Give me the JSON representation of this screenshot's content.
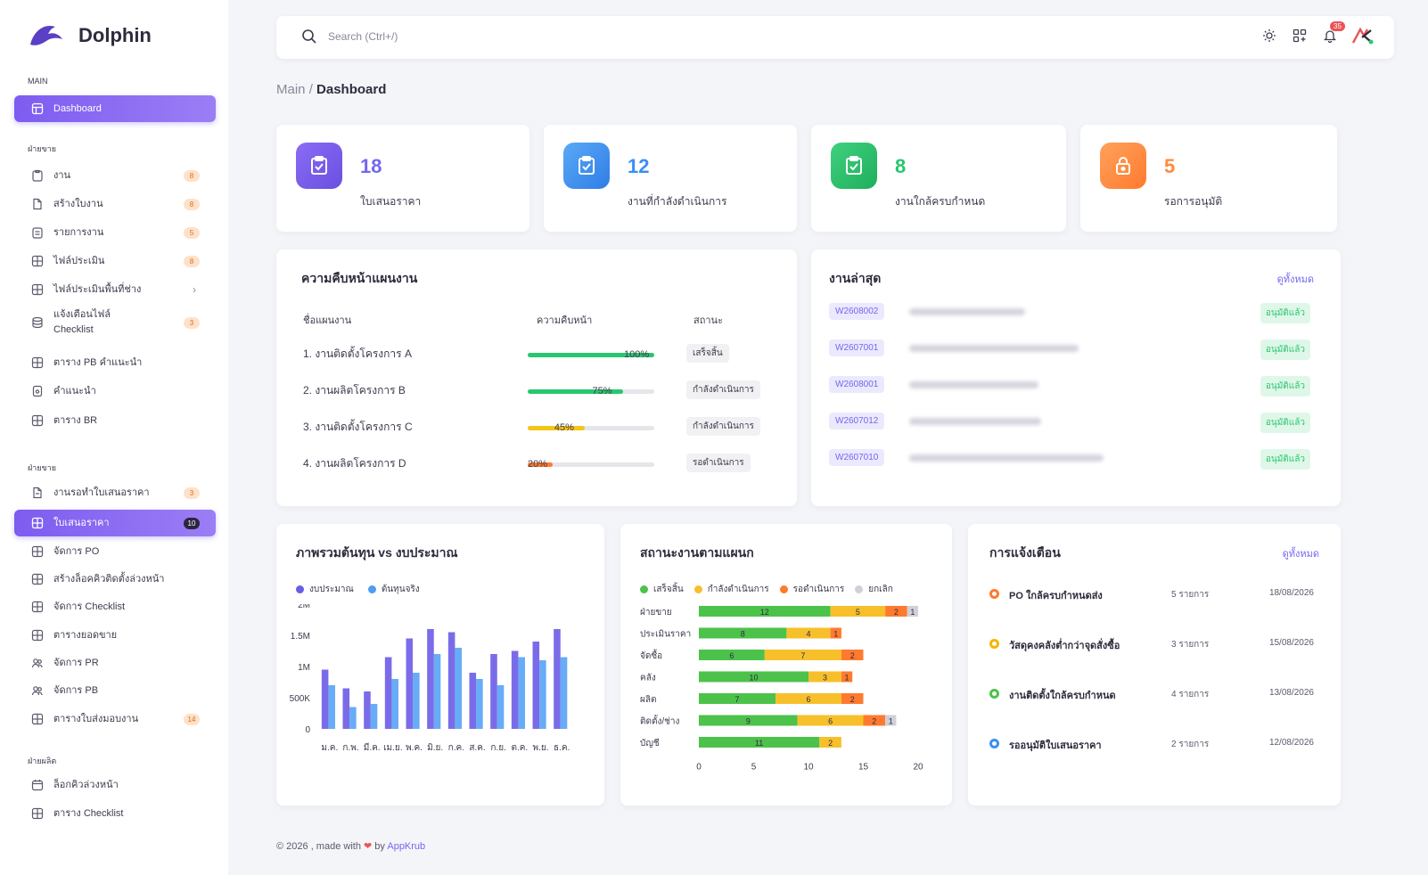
{
  "brand": {
    "name": "Dolphin",
    "logo_text": "Dolphin"
  },
  "sidebar": {
    "sections": [
      "MAIN",
      "ฝ่ายขาย",
      "ฝ่ายขาย",
      "ฝ่ายผลิต"
    ],
    "dashboard": "Dashboard",
    "group1": [
      {
        "label": "งาน",
        "badge": "8"
      },
      {
        "label": "สร้างใบงาน",
        "badge": "8"
      },
      {
        "label": "รายการงาน",
        "badge": "5"
      },
      {
        "label": "ไฟล์ประเมิน",
        "badge": "8"
      },
      {
        "label": "ไฟล์ประเมินพื้นที่ช่าง",
        "chevron": "›"
      },
      {
        "label": "แจ้งเตือนไฟล์ Checklist",
        "badge": "3"
      },
      {
        "label": "ตาราง PB คำแนะนำ"
      },
      {
        "label": "คำแนะนำ"
      },
      {
        "label": "ตาราง BR"
      }
    ],
    "group2": [
      {
        "label": "งานรอทำใบเสนอราคา",
        "badge": "3"
      },
      {
        "label": "ใบเสนอราคา",
        "badge": "10"
      },
      {
        "label": "จัดการ PO"
      },
      {
        "label": "สร้างล็อคคิวติดตั้งล่วงหน้า"
      },
      {
        "label": "จัดการ Checklist"
      },
      {
        "label": "ตารางยอดขาย"
      },
      {
        "label": "จัดการ PR"
      },
      {
        "label": "จัดการ PB"
      },
      {
        "label": "ตารางใบส่งมอบงาน",
        "badge": "14"
      }
    ],
    "group3": [
      {
        "label": "ล็อกคิวล่วงหน้า"
      },
      {
        "label": "ตาราง Checklist"
      }
    ]
  },
  "topbar": {
    "search_placeholder": "Search (Ctrl+/)",
    "notif_count": "35"
  },
  "breadcrumb": {
    "parent": "Main",
    "sep": "/",
    "current": "Dashboard"
  },
  "stats": [
    {
      "value": "18",
      "label": "ใบเสนอราคา",
      "color": "#7367f0"
    },
    {
      "value": "12",
      "label": "งานที่กำลังดำเนินการ",
      "color": "#3b8ff3"
    },
    {
      "value": "8",
      "label": "งานใกล้ครบกำหนด",
      "color": "#28c76f"
    },
    {
      "value": "5",
      "label": "รอการอนุมัติ",
      "color": "#ff8a3d"
    }
  ],
  "progress": {
    "title": "ความคืบหน้าแผนงาน",
    "headers": [
      "ชื่อแผนงาน",
      "ความคืบหน้า",
      "สถานะ"
    ],
    "rows": [
      {
        "name": "1. งานติดตั้งโครงการ A",
        "pct": "100%",
        "value": 100,
        "status": "เสร็จสิ้น",
        "color": "#28c76f"
      },
      {
        "name": "2. งานผลิตโครงการ B",
        "pct": "75%",
        "value": 75,
        "status": "กำลังดำเนินการ",
        "color": "#28c76f"
      },
      {
        "name": "3. งานติดตั้งโครงการ C",
        "pct": "45%",
        "value": 45,
        "status": "กำลังดำเนินการ",
        "color": "#f5c518"
      },
      {
        "name": "4. งานผลิตโครงการ D",
        "pct": "20%",
        "value": 20,
        "status": "รอดำเนินการ",
        "color": "#ff7a2f"
      }
    ]
  },
  "recent": {
    "title": "งานล่าสุด",
    "link": "ดูทั้งหมด",
    "rows": [
      {
        "code": "W2608002",
        "status": "อนุมัติแล้ว"
      },
      {
        "code": "W2607001",
        "status": "อนุมัติแล้ว"
      },
      {
        "code": "W2608001",
        "status": "อนุมัติแล้ว"
      },
      {
        "code": "W2607012",
        "status": "อนุมัติแล้ว"
      },
      {
        "code": "W2607010",
        "status": "อนุมัติแล้ว"
      }
    ]
  },
  "cost_chart": {
    "title": "ภาพรวมต้นทุน vs งบประมาณ",
    "legend": [
      "งบประมาณ",
      "ต้นทุนจริง"
    ],
    "colors": [
      "#6b5ce7",
      "#4d9cf5"
    ]
  },
  "status_chart": {
    "title": "สถานะงานตามแผนก",
    "legend": [
      "เสร็จสิ้น",
      "กำลังดำเนินการ",
      "รอดำเนินการ",
      "ยกเลิก"
    ],
    "colors": [
      "#4cc24a",
      "#f7c02b",
      "#ff7a2f",
      "#d0d0d6"
    ]
  },
  "notifications": {
    "title": "การแจ้งเตือน",
    "link": "ดูทั้งหมด",
    "rows": [
      {
        "text": "PO ใกล้ครบกำหนดส่ง",
        "count": "5 รายการ",
        "date": "18/08/2026",
        "color": "#ff7a2f"
      },
      {
        "text": "วัสดุคงคลังต่ำกว่าจุดสั่งซื้อ",
        "count": "3 รายการ",
        "date": "15/08/2026",
        "color": "#f7b500"
      },
      {
        "text": "งานติดตั้งใกล้ครบกำหนด",
        "count": "4 รายการ",
        "date": "13/08/2026",
        "color": "#4cc24a"
      },
      {
        "text": "รออนุมัติใบเสนอราคา",
        "count": "2 รายการ",
        "date": "12/08/2026",
        "color": "#3b8ff3"
      }
    ]
  },
  "footer": {
    "text": "© 2026 , made with",
    "heart": "❤",
    "by": "by",
    "company": "AppKrub"
  },
  "chart_data": [
    {
      "type": "bar",
      "title": "ภาพรวมต้นทุน vs งบประมาณ",
      "categories": [
        "ม.ค.",
        "ก.พ.",
        "มี.ค.",
        "เม.ย.",
        "พ.ค.",
        "มิ.ย.",
        "ก.ค.",
        "ส.ค.",
        "ก.ย.",
        "ต.ค.",
        "พ.ย.",
        "ธ.ค."
      ],
      "y_ticks": [
        "2M",
        "1.5M",
        "1M",
        "500K",
        "0"
      ],
      "ylim": [
        0,
        2000000
      ],
      "series": [
        {
          "name": "งบประมาณ",
          "values": [
            950000,
            650000,
            600000,
            1150000,
            1450000,
            1600000,
            1550000,
            900000,
            1200000,
            1250000,
            1400000,
            1600000
          ]
        },
        {
          "name": "ต้นทุนจริง",
          "values": [
            700000,
            350000,
            400000,
            800000,
            900000,
            1200000,
            1300000,
            800000,
            700000,
            1150000,
            1100000,
            1150000
          ]
        }
      ]
    },
    {
      "type": "bar",
      "orientation": "horizontal",
      "stacked": true,
      "title": "สถานะงานตามแผนก",
      "categories": [
        "ฝ่ายขาย",
        "ประเมินราคา",
        "จัดซื้อ",
        "คลัง",
        "ผลิต",
        "ติดตั้ง/ช่าง",
        "บัญชี"
      ],
      "x_ticks": [
        "0",
        "5",
        "10",
        "15",
        "20"
      ],
      "xlim": [
        0,
        20
      ],
      "series": [
        {
          "name": "เสร็จสิ้น",
          "values": [
            12,
            8,
            6,
            10,
            7,
            9,
            11
          ]
        },
        {
          "name": "กำลังดำเนินการ",
          "values": [
            5,
            4,
            7,
            3,
            6,
            6,
            2
          ]
        },
        {
          "name": "รอดำเนินการ",
          "values": [
            2,
            1,
            2,
            1,
            2,
            2,
            0
          ]
        },
        {
          "name": "ยกเลิก",
          "values": [
            1,
            0,
            0,
            0,
            0,
            1,
            0
          ]
        }
      ]
    }
  ]
}
